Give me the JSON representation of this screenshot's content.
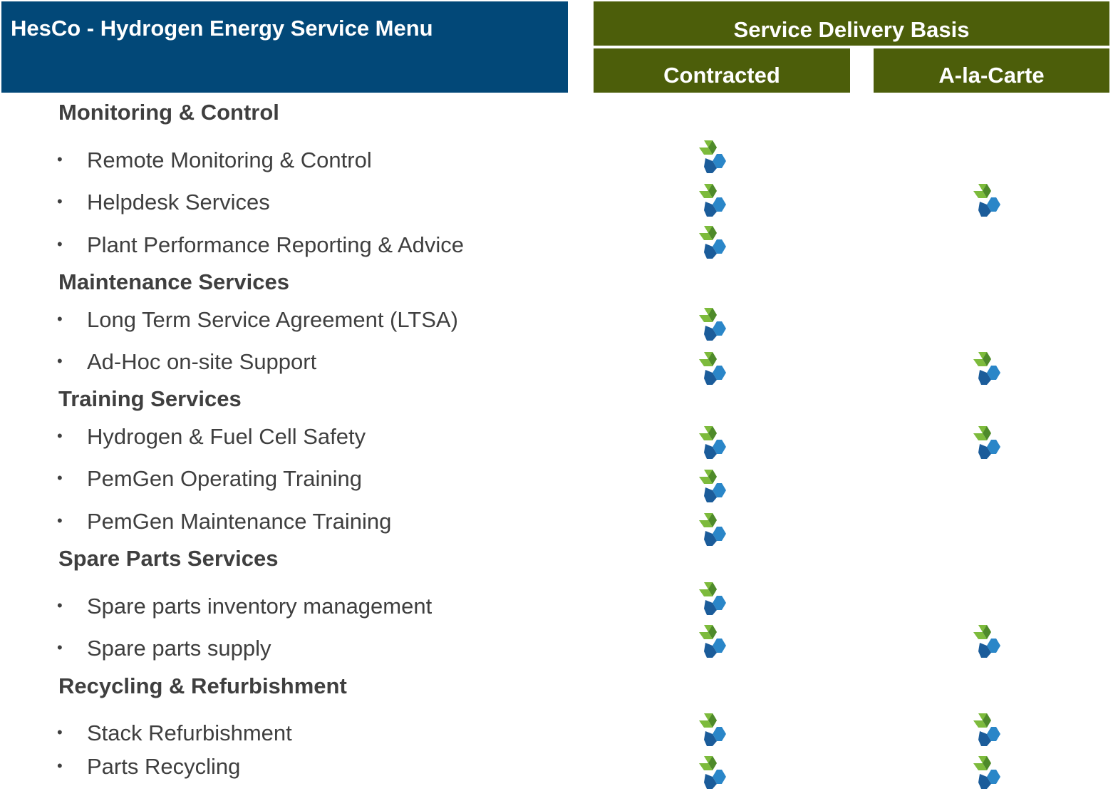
{
  "header": {
    "title": "HesCo - Hydrogen Energy Service Menu",
    "basis_title": "Service Delivery Basis",
    "columns": [
      "Contracted",
      "A-la-Carte"
    ]
  },
  "bullet": "•",
  "icon": {
    "name": "hesco-logo-icon",
    "colors": {
      "green_light": "#7dbb3c",
      "green_dark": "#4e8a2a",
      "blue_light": "#2a86c8",
      "blue_dark": "#1b5c9a"
    }
  },
  "sections": [
    {
      "title": "Monitoring & Control",
      "items": [
        {
          "label": "Remote Monitoring & Control",
          "contracted": true,
          "a_la_carte": false
        },
        {
          "label": "Helpdesk Services",
          "contracted": true,
          "a_la_carte": true
        },
        {
          "label": "Plant Performance Reporting & Advice",
          "contracted": true,
          "a_la_carte": false
        }
      ]
    },
    {
      "title": "Maintenance Services",
      "items": [
        {
          "label": "Long Term Service Agreement (LTSA)",
          "contracted": true,
          "a_la_carte": false
        },
        {
          "label": "Ad-Hoc on-site Support",
          "contracted": true,
          "a_la_carte": true
        }
      ]
    },
    {
      "title": "Training Services",
      "items": [
        {
          "label": "Hydrogen & Fuel Cell Safety",
          "contracted": true,
          "a_la_carte": true
        },
        {
          "label": "PemGen Operating Training",
          "contracted": true,
          "a_la_carte": false
        },
        {
          "label": "PemGen Maintenance Training",
          "contracted": true,
          "a_la_carte": false
        }
      ]
    },
    {
      "title": "Spare Parts Services",
      "items": [
        {
          "label": "Spare parts inventory management",
          "contracted": true,
          "a_la_carte": false
        },
        {
          "label": "Spare parts supply",
          "contracted": true,
          "a_la_carte": true
        }
      ]
    },
    {
      "title": "Recycling & Refurbishment",
      "items": [
        {
          "label": "Stack Refurbishment",
          "contracted": true,
          "a_la_carte": true
        },
        {
          "label": "Parts Recycling",
          "contracted": true,
          "a_la_carte": true
        }
      ]
    }
  ]
}
